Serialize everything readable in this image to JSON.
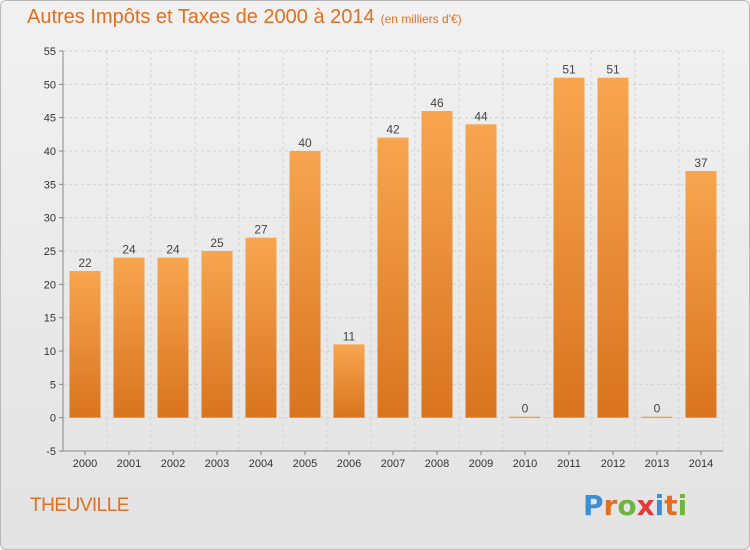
{
  "header": {
    "title": "Autres Impôts et Taxes de 2000 à 2014",
    "unit": "(en milliers d'€)"
  },
  "commune": "THEUVILLE",
  "logo": {
    "text": "Proxiti",
    "letter_colors": [
      "#3a8fd6",
      "#e0701f",
      "#6fb43f",
      "#e03a3a",
      "#3a8fd6",
      "#e0701f",
      "#6fb43f"
    ]
  },
  "colors": {
    "bar_light": "#f8a550",
    "bar_dark": "#d9741e",
    "accent": "#e0701f"
  },
  "chart_data": {
    "type": "bar",
    "categories": [
      "2000",
      "2001",
      "2002",
      "2003",
      "2004",
      "2005",
      "2006",
      "2007",
      "2008",
      "2009",
      "2010",
      "2011",
      "2012",
      "2013",
      "2014"
    ],
    "values": [
      22,
      24,
      24,
      25,
      27,
      40,
      11,
      42,
      46,
      44,
      0,
      51,
      51,
      0,
      37
    ],
    "ylim": [
      -5,
      55
    ],
    "yticks": [
      -5,
      0,
      5,
      10,
      15,
      20,
      25,
      30,
      35,
      40,
      45,
      50,
      55
    ],
    "grid": true
  }
}
